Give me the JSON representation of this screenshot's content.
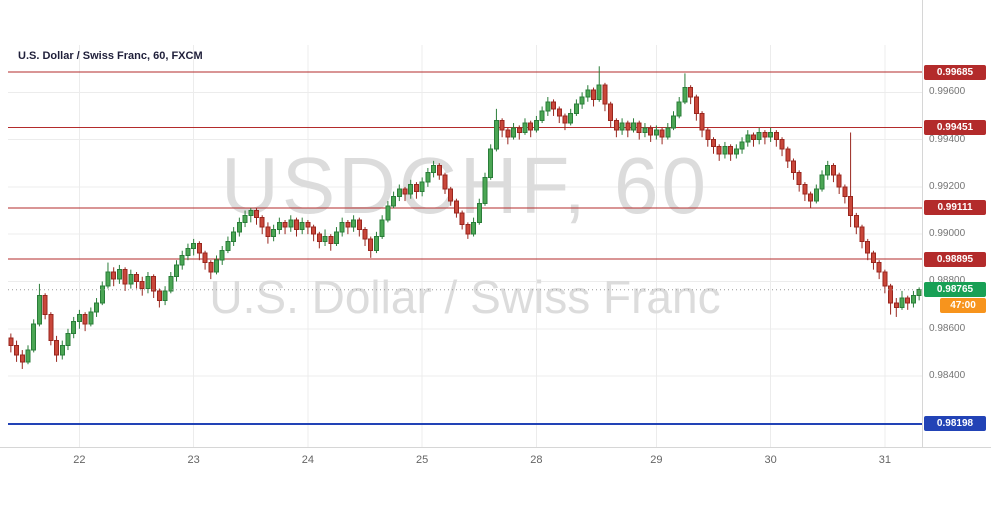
{
  "header": {
    "title": "U.S. Dollar / Swiss Franc, 60, FXCM"
  },
  "watermark": {
    "line1": "USDCHF, 60",
    "line2": "U.S. Dollar / Swiss Franc"
  },
  "colors": {
    "up_fill": "#4ba654",
    "up_border": "#2a7d39",
    "down_fill": "#c9473a",
    "down_border": "#99261e",
    "level_red": "#b32b2b",
    "level_blue": "#2243b6",
    "price_badge_bg": "#18a055",
    "countdown_badge_bg": "#f7941d",
    "grid": "#ececec",
    "separator": "#d6d6d6",
    "axis_text": "#757575",
    "watermark": "#dcdcdc",
    "current_price_line": "#999999"
  },
  "chart_data": {
    "type": "candlestick",
    "title": "U.S. Dollar / Swiss Franc, 60, FXCM",
    "symbol": "USDCHF",
    "timeframe_minutes": 60,
    "provider": "FXCM",
    "y_range": [
      0.981,
      0.998
    ],
    "y_axis_ticks": [
      0.984,
      0.986,
      0.988,
      0.99,
      0.992,
      0.994,
      0.996
    ],
    "x_tick_labels": [
      "22",
      "23",
      "24",
      "25",
      "28",
      "29",
      "30",
      "31"
    ],
    "x_tick_indices": [
      12,
      32,
      52,
      72,
      92,
      113,
      133,
      153
    ],
    "levels": [
      {
        "value": 0.99685,
        "color": "red"
      },
      {
        "value": 0.99451,
        "color": "red"
      },
      {
        "value": 0.99111,
        "color": "red"
      },
      {
        "value": 0.98895,
        "color": "red"
      },
      {
        "value": 0.98198,
        "color": "blue"
      }
    ],
    "current_price": 0.98765,
    "bar_countdown": "47:00",
    "candles_ohlc": [
      [
        0.9856,
        0.9858,
        0.985,
        0.9853
      ],
      [
        0.9853,
        0.9855,
        0.9846,
        0.9849
      ],
      [
        0.9849,
        0.9851,
        0.9843,
        0.9846
      ],
      [
        0.9846,
        0.9853,
        0.9845,
        0.9851
      ],
      [
        0.9851,
        0.9864,
        0.985,
        0.9862
      ],
      [
        0.9862,
        0.9879,
        0.9861,
        0.9874
      ],
      [
        0.9874,
        0.9875,
        0.9864,
        0.9866
      ],
      [
        0.9866,
        0.9867,
        0.9853,
        0.9855
      ],
      [
        0.9855,
        0.9857,
        0.9846,
        0.9849
      ],
      [
        0.9849,
        0.9855,
        0.9847,
        0.9853
      ],
      [
        0.9853,
        0.986,
        0.9851,
        0.9858
      ],
      [
        0.9858,
        0.9865,
        0.9856,
        0.9863
      ],
      [
        0.9863,
        0.9868,
        0.986,
        0.9866
      ],
      [
        0.9866,
        0.9867,
        0.9859,
        0.9862
      ],
      [
        0.9862,
        0.9869,
        0.9861,
        0.9867
      ],
      [
        0.9867,
        0.9873,
        0.9865,
        0.9871
      ],
      [
        0.9871,
        0.988,
        0.987,
        0.9878
      ],
      [
        0.9878,
        0.9888,
        0.9877,
        0.9884
      ],
      [
        0.9884,
        0.9886,
        0.9878,
        0.9881
      ],
      [
        0.9881,
        0.9887,
        0.9879,
        0.9885
      ],
      [
        0.9885,
        0.9886,
        0.9876,
        0.9879
      ],
      [
        0.9879,
        0.9885,
        0.9877,
        0.9883
      ],
      [
        0.9883,
        0.9884,
        0.9877,
        0.988
      ],
      [
        0.988,
        0.9882,
        0.9874,
        0.9877
      ],
      [
        0.9877,
        0.9884,
        0.9875,
        0.9882
      ],
      [
        0.9882,
        0.9883,
        0.9873,
        0.9876
      ],
      [
        0.9876,
        0.9877,
        0.9869,
        0.9872
      ],
      [
        0.9872,
        0.9878,
        0.987,
        0.9876
      ],
      [
        0.9876,
        0.9884,
        0.9875,
        0.9882
      ],
      [
        0.9882,
        0.9889,
        0.988,
        0.9887
      ],
      [
        0.9887,
        0.9893,
        0.9885,
        0.9891
      ],
      [
        0.9891,
        0.9896,
        0.9889,
        0.9894
      ],
      [
        0.9894,
        0.9898,
        0.9891,
        0.9896
      ],
      [
        0.9896,
        0.9897,
        0.9889,
        0.9892
      ],
      [
        0.9892,
        0.9893,
        0.9885,
        0.9888
      ],
      [
        0.9888,
        0.9889,
        0.9881,
        0.9884
      ],
      [
        0.9884,
        0.9891,
        0.9883,
        0.9889
      ],
      [
        0.9889,
        0.9895,
        0.9887,
        0.9893
      ],
      [
        0.9893,
        0.9899,
        0.9892,
        0.9897
      ],
      [
        0.9897,
        0.9903,
        0.9895,
        0.9901
      ],
      [
        0.9901,
        0.9907,
        0.9899,
        0.9905
      ],
      [
        0.9905,
        0.991,
        0.9903,
        0.9908
      ],
      [
        0.9908,
        0.9911,
        0.9905,
        0.991
      ],
      [
        0.991,
        0.9911,
        0.9904,
        0.9907
      ],
      [
        0.9907,
        0.9908,
        0.99,
        0.9903
      ],
      [
        0.9903,
        0.9905,
        0.9896,
        0.9899
      ],
      [
        0.9899,
        0.9904,
        0.9897,
        0.9902
      ],
      [
        0.9902,
        0.9907,
        0.99,
        0.9905
      ],
      [
        0.9905,
        0.9906,
        0.99,
        0.9903
      ],
      [
        0.9903,
        0.9908,
        0.9901,
        0.9906
      ],
      [
        0.9906,
        0.9907,
        0.9899,
        0.9902
      ],
      [
        0.9902,
        0.9907,
        0.99,
        0.9905
      ],
      [
        0.9905,
        0.9906,
        0.99,
        0.9903
      ],
      [
        0.9903,
        0.9904,
        0.9897,
        0.99
      ],
      [
        0.99,
        0.9901,
        0.9894,
        0.9897
      ],
      [
        0.9897,
        0.9902,
        0.9895,
        0.9899
      ],
      [
        0.9899,
        0.99,
        0.9893,
        0.9896
      ],
      [
        0.9896,
        0.9903,
        0.9895,
        0.9901
      ],
      [
        0.9901,
        0.9907,
        0.9899,
        0.9905
      ],
      [
        0.9905,
        0.9906,
        0.99,
        0.9903
      ],
      [
        0.9903,
        0.9908,
        0.9901,
        0.9906
      ],
      [
        0.9906,
        0.9907,
        0.9899,
        0.9902
      ],
      [
        0.9902,
        0.9903,
        0.9895,
        0.9898
      ],
      [
        0.9898,
        0.9899,
        0.989,
        0.9893
      ],
      [
        0.9893,
        0.9901,
        0.9892,
        0.9899
      ],
      [
        0.9899,
        0.9908,
        0.9898,
        0.9906
      ],
      [
        0.9906,
        0.9914,
        0.9905,
        0.9912
      ],
      [
        0.9912,
        0.9918,
        0.9911,
        0.9916
      ],
      [
        0.9916,
        0.9921,
        0.9914,
        0.9919
      ],
      [
        0.9919,
        0.992,
        0.9914,
        0.9917
      ],
      [
        0.9917,
        0.9923,
        0.9915,
        0.9921
      ],
      [
        0.9921,
        0.9922,
        0.9915,
        0.9918
      ],
      [
        0.9918,
        0.9924,
        0.9916,
        0.9922
      ],
      [
        0.9922,
        0.9928,
        0.992,
        0.9926
      ],
      [
        0.9926,
        0.9931,
        0.9924,
        0.9929
      ],
      [
        0.9929,
        0.993,
        0.9923,
        0.9925
      ],
      [
        0.9925,
        0.9926,
        0.9917,
        0.9919
      ],
      [
        0.9919,
        0.992,
        0.9912,
        0.9914
      ],
      [
        0.9914,
        0.9915,
        0.9907,
        0.9909
      ],
      [
        0.9909,
        0.991,
        0.9902,
        0.9904
      ],
      [
        0.9904,
        0.9905,
        0.9898,
        0.99
      ],
      [
        0.99,
        0.9907,
        0.9899,
        0.9905
      ],
      [
        0.9905,
        0.9915,
        0.9904,
        0.9913
      ],
      [
        0.9913,
        0.9926,
        0.9912,
        0.9924
      ],
      [
        0.9924,
        0.9938,
        0.9923,
        0.9936
      ],
      [
        0.9936,
        0.9953,
        0.9935,
        0.9948
      ],
      [
        0.9948,
        0.9949,
        0.9941,
        0.9944
      ],
      [
        0.9944,
        0.9945,
        0.9938,
        0.9941
      ],
      [
        0.9941,
        0.9947,
        0.994,
        0.9945
      ],
      [
        0.9945,
        0.9946,
        0.994,
        0.9943
      ],
      [
        0.9943,
        0.9949,
        0.9942,
        0.9947
      ],
      [
        0.9947,
        0.9948,
        0.9941,
        0.9944
      ],
      [
        0.9944,
        0.995,
        0.9943,
        0.9948
      ],
      [
        0.9948,
        0.9954,
        0.9947,
        0.9952
      ],
      [
        0.9952,
        0.9958,
        0.995,
        0.9956
      ],
      [
        0.9956,
        0.9957,
        0.995,
        0.9953
      ],
      [
        0.9953,
        0.9954,
        0.9947,
        0.995
      ],
      [
        0.995,
        0.9951,
        0.9944,
        0.9947
      ],
      [
        0.9947,
        0.9953,
        0.9946,
        0.9951
      ],
      [
        0.9951,
        0.9957,
        0.995,
        0.9955
      ],
      [
        0.9955,
        0.996,
        0.9953,
        0.9958
      ],
      [
        0.9958,
        0.9963,
        0.9956,
        0.9961
      ],
      [
        0.9961,
        0.9962,
        0.9954,
        0.9957
      ],
      [
        0.9957,
        0.9971,
        0.9956,
        0.9963
      ],
      [
        0.9963,
        0.9964,
        0.9952,
        0.9955
      ],
      [
        0.9955,
        0.9956,
        0.9945,
        0.9948
      ],
      [
        0.9948,
        0.9949,
        0.9941,
        0.9944
      ],
      [
        0.9944,
        0.9949,
        0.9942,
        0.9947
      ],
      [
        0.9947,
        0.9948,
        0.9941,
        0.9944
      ],
      [
        0.9944,
        0.9949,
        0.9943,
        0.9947
      ],
      [
        0.9947,
        0.9948,
        0.994,
        0.9943
      ],
      [
        0.9943,
        0.9947,
        0.9941,
        0.9945
      ],
      [
        0.9945,
        0.9946,
        0.9939,
        0.9942
      ],
      [
        0.9942,
        0.9946,
        0.994,
        0.9944
      ],
      [
        0.9944,
        0.9945,
        0.9938,
        0.9941
      ],
      [
        0.9941,
        0.9947,
        0.994,
        0.9945
      ],
      [
        0.9945,
        0.9952,
        0.9944,
        0.995
      ],
      [
        0.995,
        0.9958,
        0.9949,
        0.9956
      ],
      [
        0.9956,
        0.9968,
        0.9955,
        0.9962
      ],
      [
        0.9962,
        0.9963,
        0.9955,
        0.9958
      ],
      [
        0.9958,
        0.9959,
        0.9948,
        0.9951
      ],
      [
        0.9951,
        0.9952,
        0.9941,
        0.9944
      ],
      [
        0.9944,
        0.9945,
        0.9937,
        0.994
      ],
      [
        0.994,
        0.9941,
        0.9934,
        0.9937
      ],
      [
        0.9937,
        0.9938,
        0.9931,
        0.9934
      ],
      [
        0.9934,
        0.9939,
        0.9932,
        0.9937
      ],
      [
        0.9937,
        0.9938,
        0.9931,
        0.9934
      ],
      [
        0.9934,
        0.9938,
        0.9932,
        0.9936
      ],
      [
        0.9936,
        0.9941,
        0.9934,
        0.9939
      ],
      [
        0.9939,
        0.9944,
        0.9937,
        0.9942
      ],
      [
        0.9942,
        0.9943,
        0.9937,
        0.994
      ],
      [
        0.994,
        0.9945,
        0.9938,
        0.9943
      ],
      [
        0.9943,
        0.9944,
        0.9938,
        0.9941
      ],
      [
        0.9941,
        0.9945,
        0.9939,
        0.9943
      ],
      [
        0.9943,
        0.9944,
        0.9937,
        0.994
      ],
      [
        0.994,
        0.9941,
        0.9933,
        0.9936
      ],
      [
        0.9936,
        0.9937,
        0.9928,
        0.9931
      ],
      [
        0.9931,
        0.9932,
        0.9923,
        0.9926
      ],
      [
        0.9926,
        0.9927,
        0.9918,
        0.9921
      ],
      [
        0.9921,
        0.9922,
        0.9914,
        0.9917
      ],
      [
        0.9917,
        0.9918,
        0.9911,
        0.9914
      ],
      [
        0.9914,
        0.9921,
        0.9913,
        0.9919
      ],
      [
        0.9919,
        0.9927,
        0.9918,
        0.9925
      ],
      [
        0.9925,
        0.9931,
        0.9923,
        0.9929
      ],
      [
        0.9929,
        0.993,
        0.9922,
        0.9925
      ],
      [
        0.9925,
        0.9926,
        0.9917,
        0.992
      ],
      [
        0.992,
        0.9921,
        0.9913,
        0.9916
      ],
      [
        0.9916,
        0.9943,
        0.9903,
        0.9908
      ],
      [
        0.9908,
        0.9909,
        0.99,
        0.9903
      ],
      [
        0.9903,
        0.9904,
        0.9894,
        0.9897
      ],
      [
        0.9897,
        0.9898,
        0.9889,
        0.9892
      ],
      [
        0.9892,
        0.9893,
        0.9885,
        0.9888
      ],
      [
        0.9888,
        0.9889,
        0.9881,
        0.9884
      ],
      [
        0.9884,
        0.9885,
        0.9875,
        0.9878
      ],
      [
        0.9878,
        0.9879,
        0.9866,
        0.9871
      ],
      [
        0.9871,
        0.9873,
        0.9865,
        0.9869
      ],
      [
        0.9869,
        0.9876,
        0.9868,
        0.9873
      ],
      [
        0.9873,
        0.9874,
        0.9868,
        0.9871
      ],
      [
        0.9871,
        0.9876,
        0.9869,
        0.9874
      ],
      [
        0.9874,
        0.98775,
        0.9872,
        0.98765
      ]
    ]
  }
}
